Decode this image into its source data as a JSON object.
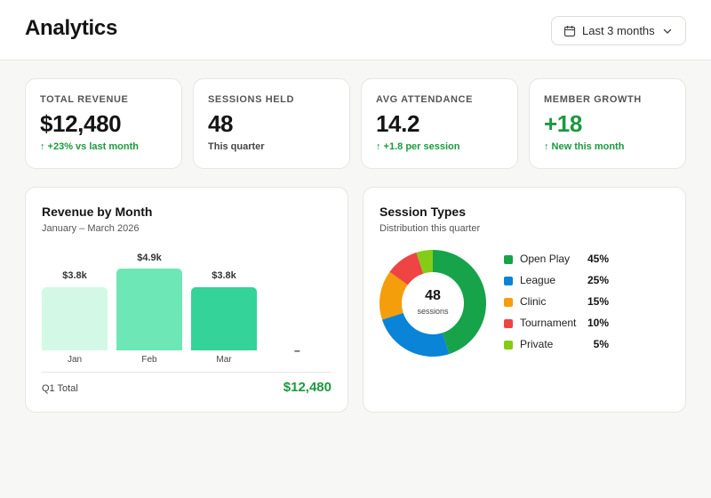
{
  "header": {
    "title": "Analytics",
    "range_label": "Last 3 months"
  },
  "stats": [
    {
      "label": "TOTAL REVENUE",
      "value": "$12,480",
      "sub": "↑ +23% vs last month"
    },
    {
      "label": "SESSIONS HELD",
      "value": "48",
      "sub": "This quarter"
    },
    {
      "label": "AVG ATTENDANCE",
      "value": "14.2",
      "sub": "↑ +1.8 per session"
    },
    {
      "label": "MEMBER GROWTH",
      "value": "+18",
      "sub": "↑ New this month"
    }
  ],
  "revenue_card": {
    "title": "Revenue by Month",
    "subtitle": "January – March 2026",
    "bars": [
      {
        "label": "Jan",
        "value_label": "$3.8k"
      },
      {
        "label": "Feb",
        "value_label": "$4.9k"
      },
      {
        "label": "Mar",
        "value_label": "$3.8k"
      }
    ],
    "empty_marker": "–",
    "total_label": "Q1 Total",
    "total_value": "$12,480"
  },
  "sessions_card": {
    "title": "Session Types",
    "subtitle": "Distribution this quarter",
    "center_value": "48",
    "center_label": "sessions",
    "legend": [
      {
        "name": "Open Play",
        "pct": "45%"
      },
      {
        "name": "League",
        "pct": "25%"
      },
      {
        "name": "Clinic",
        "pct": "15%"
      },
      {
        "name": "Tournament",
        "pct": "10%"
      },
      {
        "name": "Private",
        "pct": "5%"
      }
    ]
  },
  "colors": {
    "accent_green": "#1a9a3e",
    "bar_jan": "#d3f8e6",
    "bar_feb": "#6ee7b7",
    "bar_mar": "#34d399",
    "donut": [
      "#16a34a",
      "#0a84d6",
      "#f59e0b",
      "#ef4444",
      "#84cc16"
    ]
  },
  "chart_data": [
    {
      "type": "bar",
      "title": "Revenue by Month",
      "subtitle": "January – March 2026",
      "categories": [
        "Jan",
        "Feb",
        "Mar"
      ],
      "values": [
        3.8,
        4.9,
        3.8
      ],
      "value_labels": [
        "$3.8k",
        "$4.9k",
        "$3.8k"
      ],
      "ylim": [
        0,
        4.9
      ],
      "grid": false
    },
    {
      "type": "pie",
      "title": "Session Types",
      "subtitle": "Distribution this quarter",
      "categories": [
        "Open Play",
        "League",
        "Clinic",
        "Tournament",
        "Private"
      ],
      "values": [
        45,
        25,
        15,
        10,
        5
      ],
      "donut": true,
      "legend": "right"
    }
  ]
}
